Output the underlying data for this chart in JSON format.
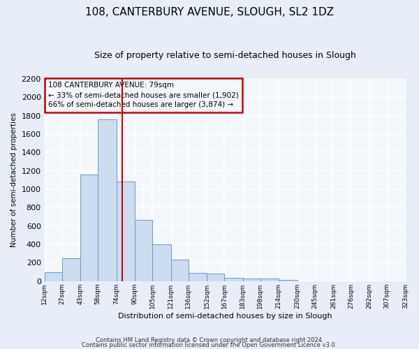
{
  "title1": "108, CANTERBURY AVENUE, SLOUGH, SL2 1DZ",
  "title2": "Size of property relative to semi-detached houses in Slough",
  "xlabel": "Distribution of semi-detached houses by size in Slough",
  "ylabel": "Number of semi-detached properties",
  "bin_edges": [
    12,
    27,
    43,
    58,
    74,
    90,
    105,
    121,
    136,
    152,
    167,
    183,
    198,
    214,
    230,
    245,
    261,
    276,
    292,
    307,
    323
  ],
  "bar_heights": [
    100,
    250,
    1160,
    1760,
    1085,
    665,
    400,
    235,
    90,
    80,
    40,
    30,
    25,
    15,
    0,
    0,
    0,
    0,
    0,
    0
  ],
  "bar_color": "#ccddf0",
  "bar_edge_color": "#6699cc",
  "property_sqm": 79,
  "vline_color": "#cc0000",
  "ylim": [
    0,
    2200
  ],
  "yticks": [
    0,
    200,
    400,
    600,
    800,
    1000,
    1200,
    1400,
    1600,
    1800,
    2000,
    2200
  ],
  "annotation_title": "108 CANTERBURY AVENUE: 79sqm",
  "annotation_line1": "← 33% of semi-detached houses are smaller (1,902)",
  "annotation_line2": "66% of semi-detached houses are larger (3,874) →",
  "annotation_box_color": "#cc0000",
  "footer_line1": "Contains HM Land Registry data © Crown copyright and database right 2024.",
  "footer_line2": "Contains public sector information licensed under the Open Government Licence v3.0.",
  "fig_background_color": "#e8eef8",
  "plot_background_color": "#f4f7fc",
  "grid_color": "#ffffff"
}
